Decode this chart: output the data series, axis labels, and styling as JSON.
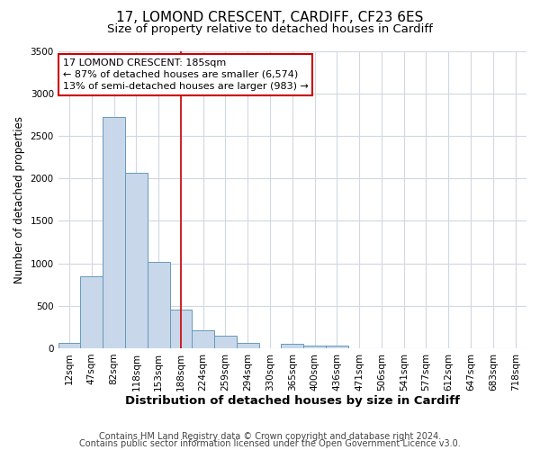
{
  "title_line1": "17, LOMOND CRESCENT, CARDIFF, CF23 6ES",
  "title_line2": "Size of property relative to detached houses in Cardiff",
  "xlabel": "Distribution of detached houses by size in Cardiff",
  "ylabel": "Number of detached properties",
  "bar_labels": [
    "12sqm",
    "47sqm",
    "82sqm",
    "118sqm",
    "153sqm",
    "188sqm",
    "224sqm",
    "259sqm",
    "294sqm",
    "330sqm",
    "365sqm",
    "400sqm",
    "436sqm",
    "471sqm",
    "506sqm",
    "541sqm",
    "577sqm",
    "612sqm",
    "647sqm",
    "683sqm",
    "718sqm"
  ],
  "bar_values": [
    60,
    850,
    2720,
    2060,
    1020,
    460,
    210,
    150,
    60,
    0,
    50,
    30,
    30,
    0,
    0,
    0,
    0,
    0,
    0,
    0,
    0
  ],
  "bar_color": "#c8d8ea",
  "bar_edge_color": "#6699bb",
  "vline_x_index": 5,
  "vline_color": "#cc0000",
  "annotation_text": "17 LOMOND CRESCENT: 185sqm\n← 87% of detached houses are smaller (6,574)\n13% of semi-detached houses are larger (983) →",
  "annotation_box_facecolor": "#ffffff",
  "annotation_box_edgecolor": "#cc0000",
  "ylim": [
    0,
    3500
  ],
  "yticks": [
    0,
    500,
    1000,
    1500,
    2000,
    2500,
    3000,
    3500
  ],
  "bg_color": "#ffffff",
  "plot_bg_color": "#ffffff",
  "grid_color": "#d0d8e0",
  "footer_line1": "Contains HM Land Registry data © Crown copyright and database right 2024.",
  "footer_line2": "Contains public sector information licensed under the Open Government Licence v3.0.",
  "title_fontsize": 11,
  "subtitle_fontsize": 9.5,
  "xlabel_fontsize": 9.5,
  "ylabel_fontsize": 8.5,
  "tick_fontsize": 7.5,
  "annotation_fontsize": 8,
  "footer_fontsize": 7
}
